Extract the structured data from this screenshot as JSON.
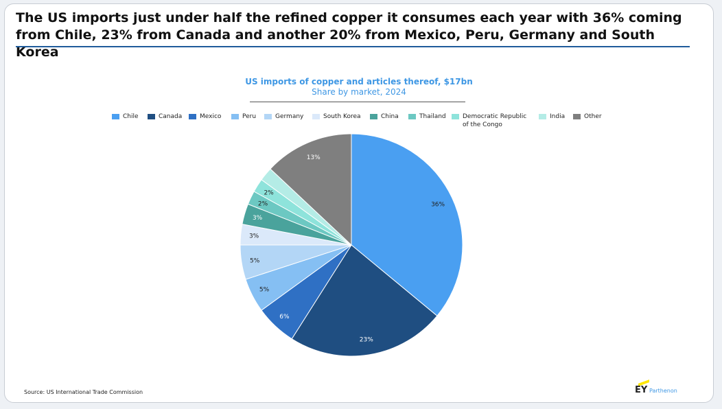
{
  "headline": "The US imports just under half the refined copper it consumes each year with 36% coming from Chile, 23% from Canada and another 20% from Mexico, Peru, Germany and South Korea",
  "source": "Source: US International Trade Commission",
  "logo": {
    "mark": "EY",
    "word": "Parthenon"
  },
  "colors": {
    "accent": "#3e97e4",
    "rule": "#1f5b9b",
    "logo_bar": "#ffe600"
  },
  "chart_data": {
    "type": "pie",
    "title": "US imports of copper and articles thereof, $17bn",
    "subtitle": "Share by market, 2024",
    "legend_placement": "top",
    "slices": [
      {
        "name": "Chile",
        "value": 36,
        "label": "36%",
        "color": "#4a9ff1"
      },
      {
        "name": "Canada",
        "value": 23,
        "label": "23%",
        "color": "#1f4e81"
      },
      {
        "name": "Mexico",
        "value": 6,
        "label": "6%",
        "color": "#2f70c4"
      },
      {
        "name": "Peru",
        "value": 5,
        "label": "5%",
        "color": "#85bff3"
      },
      {
        "name": "Germany",
        "value": 5,
        "label": "5%",
        "color": "#b3d6f6"
      },
      {
        "name": "South Korea",
        "value": 3,
        "label": "3%",
        "color": "#dbe9fa"
      },
      {
        "name": "China",
        "value": 3,
        "label": "3%",
        "color": "#4aa39c"
      },
      {
        "name": "Thailand",
        "value": 2,
        "label": "2%",
        "color": "#6cc8c2"
      },
      {
        "name": "Democratic Republic\nof the Congo",
        "value": 2,
        "label": "2%",
        "color": "#8ee3db"
      },
      {
        "name": "India",
        "value": 2,
        "label": "",
        "color": "#b4ece6"
      },
      {
        "name": "Other",
        "value": 13,
        "label": "13%",
        "color": "#7f7f7f"
      }
    ]
  }
}
